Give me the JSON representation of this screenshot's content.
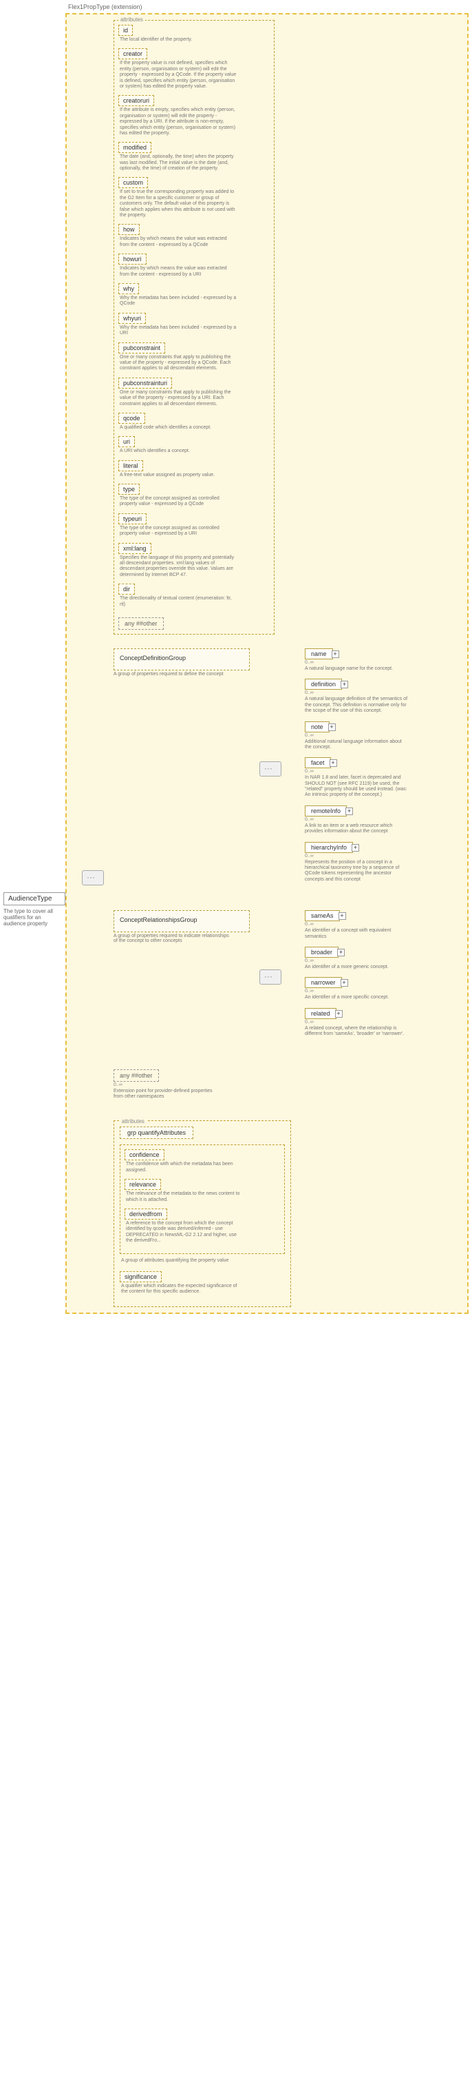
{
  "root": {
    "name": "AudienceType",
    "desc": "The type to cover all qualifiers for an audience property"
  },
  "extension": "Flex1PropType (extension)",
  "attrs_label": "attributes",
  "attrs": [
    {
      "name": "id",
      "desc": "The local identifier of the property."
    },
    {
      "name": "creator",
      "desc": "If the property value is not defined, specifies which entity (person, organisation or system) will edit the property - expressed by a QCode. If the property value is defined, specifies which entity (person, organisation or system) has edited the property value."
    },
    {
      "name": "creatoruri",
      "desc": "If the attribute is empty, specifies which entity (person, organisation or system) will edit the property - expressed by a URI. If the attribute is non-empty, specifies which entity (person, organisation or system) has edited the property."
    },
    {
      "name": "modified",
      "desc": "The date (and, optionally, the time) when the property was last modified. The initial value is the date (and, optionally, the time) of creation of the property."
    },
    {
      "name": "custom",
      "desc": "If set to true the corresponding property was added to the G2 Item for a specific customer or group of customers only. The default value of this property is false which applies when this attribute is not used with the property."
    },
    {
      "name": "how",
      "desc": "Indicates by which means the value was extracted from the content - expressed by a QCode"
    },
    {
      "name": "howuri",
      "desc": "Indicates by which means the value was extracted from the content - expressed by a URI"
    },
    {
      "name": "why",
      "desc": "Why the metadata has been included - expressed by a QCode"
    },
    {
      "name": "whyuri",
      "desc": "Why the metadata has been included - expressed by a URI"
    },
    {
      "name": "pubconstraint",
      "desc": "One or many constraints that apply to publishing the value of the property - expressed by a QCode. Each constraint applies to all descendant elements."
    },
    {
      "name": "pubconstrainturi",
      "desc": "One or many constraints that apply to publishing the value of the property - expressed by a URI. Each constraint applies to all descendant elements."
    },
    {
      "name": "qcode",
      "desc": "A qualified code which identifies a concept."
    },
    {
      "name": "uri",
      "desc": "A URI which identifies a concept."
    },
    {
      "name": "literal",
      "desc": "A free-text value assigned as property value."
    },
    {
      "name": "type",
      "desc": "The type of the concept assigned as controlled property value - expressed by a QCode"
    },
    {
      "name": "typeuri",
      "desc": "The type of the concept assigned as controlled property value - expressed by a URI"
    },
    {
      "name": "xml:lang",
      "desc": "Specifies the language of this property and potentially all descendant properties. xml:lang values of descendant properties override this value. Values are determined by Internet BCP 47."
    },
    {
      "name": "dir",
      "desc": "The directionality of textual content (enumeration: ltr, rtl)"
    }
  ],
  "any_other": "any ##other",
  "groups": {
    "def": {
      "name": "ConceptDefinitionGroup",
      "desc": "A group of properties required to define the concept",
      "children": [
        {
          "name": "name",
          "desc": "A natural language name for the concept."
        },
        {
          "name": "definition",
          "desc": "A natural language definition of the semantics of the concept. This definition is normative only for the scope of the use of this concept."
        },
        {
          "name": "note",
          "desc": "Additional natural language information about the concept."
        },
        {
          "name": "facet",
          "desc": "In NAR 1.8 and later, facet is deprecated and SHOULD NOT (see RFC 2119) be used, the \"related\" property should be used instead. (was: An intrinsic property of the concept.)"
        },
        {
          "name": "remoteInfo",
          "desc": "A link to an item or a web resource which provides information about the concept"
        },
        {
          "name": "hierarchyInfo",
          "desc": "Represents the position of a concept in a hierarchical taxonomy tree by a sequence of QCode tokens representing the ancestor concepts and this concept"
        }
      ]
    },
    "rel": {
      "name": "ConceptRelationshipsGroup",
      "desc": "A group of properties required to indicate relationships of the concept to other concepts",
      "children": [
        {
          "name": "sameAs",
          "desc": "An identifier of a concept with equivalent semantics"
        },
        {
          "name": "broader",
          "desc": "An identifier of a more generic concept."
        },
        {
          "name": "narrower",
          "desc": "An identifier of a more specific concept."
        },
        {
          "name": "related",
          "desc": "A related concept, where the relationship is different from 'sameAs', 'broader' or 'narrower'."
        }
      ]
    }
  },
  "ext_any": {
    "name": "any ##other",
    "desc": "Extension point for provider-defined properties from other namespaces",
    "card": "0..∞"
  },
  "attrs2_label": "attributes",
  "quant_grp": "grp quantifyAttributes",
  "quant_grp_desc": "A group of attributes quantifying the property value",
  "quant": [
    {
      "name": "confidence",
      "desc": "The confidence with which the metadata has been assigned."
    },
    {
      "name": "relevance",
      "desc": "The relevance of the metadata to the news content to which it is attached."
    },
    {
      "name": "derivedfrom",
      "desc": "A reference to the concept from which the concept identified by qcode was derived/inferred - use DEPRECATED in NewsML-G2 2.12 and higher, use the derivedFro..."
    }
  ],
  "significance": {
    "name": "significance",
    "desc": "A qualifier which indicates the expected significance of the content for this specific audience."
  },
  "card_0inf": "0..∞"
}
